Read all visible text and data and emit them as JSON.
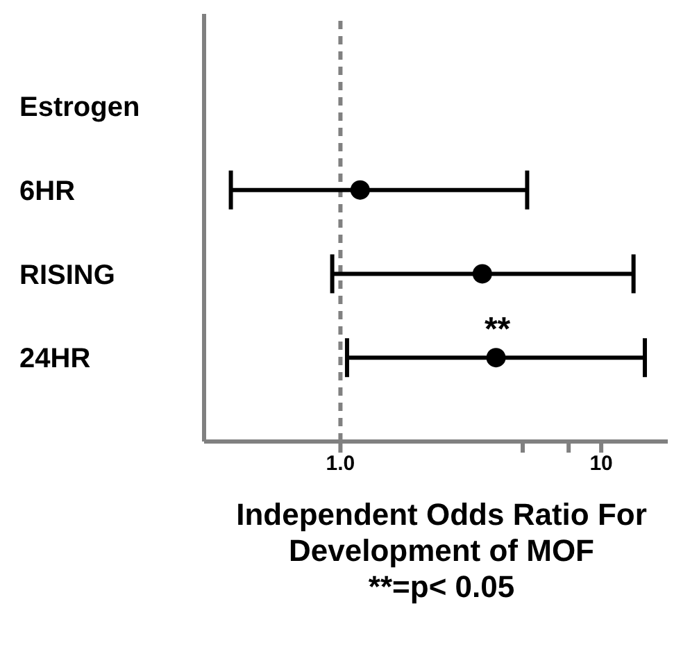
{
  "chart_data": {
    "type": "scatter",
    "orientation": "horizontal",
    "categories": [
      "Estrogen",
      "6HR",
      "RISING",
      "24HR"
    ],
    "values": [
      null,
      1.19,
      3.5,
      3.95
    ],
    "errors": [
      null,
      [
        0.38,
        5.2
      ],
      [
        0.93,
        13.3
      ],
      [
        1.06,
        14.7
      ]
    ],
    "color": "#000000",
    "marker": "circle",
    "log": "x",
    "xlim": [
      0.3,
      18
    ],
    "xticks": [
      {
        "value": 1,
        "label": "1.0"
      },
      {
        "value": 5,
        "label": null
      },
      {
        "value": 7.5,
        "label": null
      },
      10
    ],
    "xlabel": "Independent Odds Ratio For Development of MOF",
    "ref_lines": [
      {
        "axis": "x",
        "value": 1,
        "color": "#808080",
        "line_style": "dashed"
      }
    ],
    "annotations": [
      {
        "text": "**",
        "x": 4,
        "y": "24HR"
      },
      "**=p< 0.05"
    ],
    "grid": false
  }
}
